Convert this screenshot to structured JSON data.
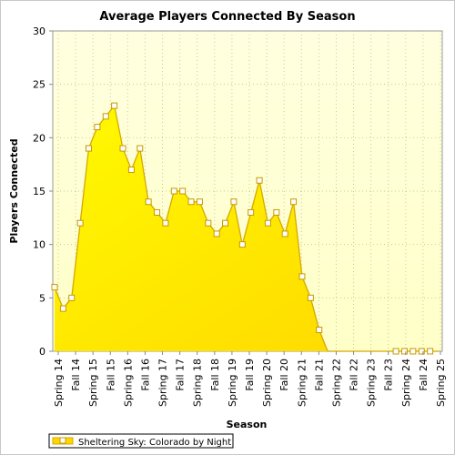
{
  "chart_data": {
    "type": "area",
    "title": "Average Players Connected By Season",
    "xlabel": "Season",
    "ylabel": "Players Connected",
    "ylim": [
      0,
      30
    ],
    "yticks": [
      0,
      5,
      10,
      15,
      20,
      25,
      30
    ],
    "grid": true,
    "legend_position": "bottom-left",
    "fill_color_top": "#fffa00",
    "fill_color_bottom": "#ffd700",
    "line_color": "#d4a800",
    "plot_bg_top": "#ffffe0",
    "plot_bg_bottom": "#ffffc8",
    "category_labels": [
      "Spring 14",
      "Fall 14",
      "Spring 15",
      "Fall 15",
      "Spring 16",
      "Fall 16",
      "Spring 17",
      "Fall 17",
      "Spring 18",
      "Fall 18",
      "Spring 19",
      "Fall 19",
      "Spring 20",
      "Fall 20",
      "Spring 21",
      "Fall 21",
      "Spring 22",
      "Fall 22",
      "Spring 23",
      "Fall 23",
      "Spring 24",
      "Fall 24",
      "Spring 25"
    ],
    "series": [
      {
        "name": "Sheltering Sky: Colorado by Night",
        "values": [
          6,
          4,
          5,
          12,
          19,
          21,
          22,
          23,
          19,
          17,
          19,
          14,
          13,
          12,
          15,
          15,
          14,
          14,
          12,
          11,
          12,
          14,
          10,
          13,
          16,
          12,
          13,
          11,
          14,
          7,
          5,
          2,
          0,
          0,
          0,
          0,
          0,
          0,
          0,
          0,
          0,
          0,
          0,
          0,
          0,
          0
        ],
        "marker_start_index": 0,
        "marker_end_index": 31,
        "trailing_marker_indices": [
          40,
          41,
          42,
          43,
          44
        ]
      }
    ]
  }
}
